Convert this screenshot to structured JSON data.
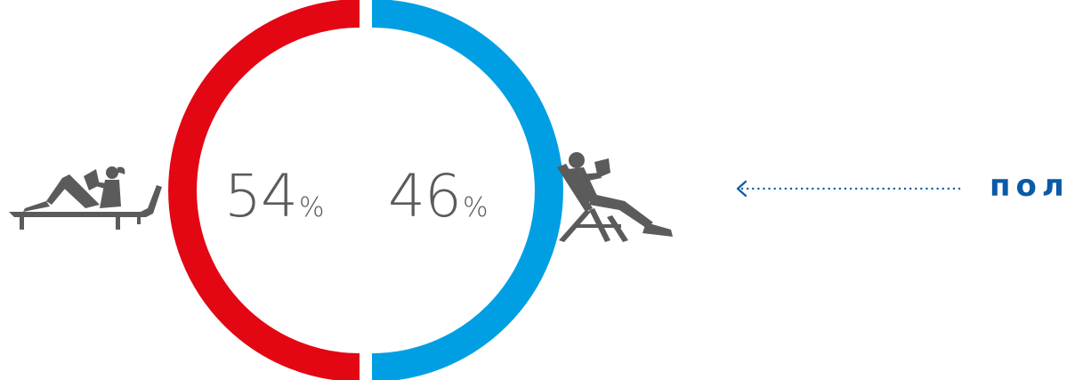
{
  "chart_data": {
    "type": "pie",
    "style": "split-ring",
    "categories": [
      "women",
      "men"
    ],
    "values": [
      54,
      46
    ],
    "unit": "%",
    "colors": [
      "#e30613",
      "#009fe3"
    ],
    "icons": [
      "woman-reading-on-sunbed-icon",
      "man-reading-in-deckchair-icon"
    ],
    "labels": {
      "left_value": "54",
      "right_value": "46",
      "percent_sign": "%"
    },
    "text_color": "#5b5b5b"
  },
  "annotation": {
    "text": "пол",
    "color": "#0a5aa8",
    "arrow_icon": "dotted-left-arrow-icon",
    "arrow_color": "#0a5aa8"
  }
}
